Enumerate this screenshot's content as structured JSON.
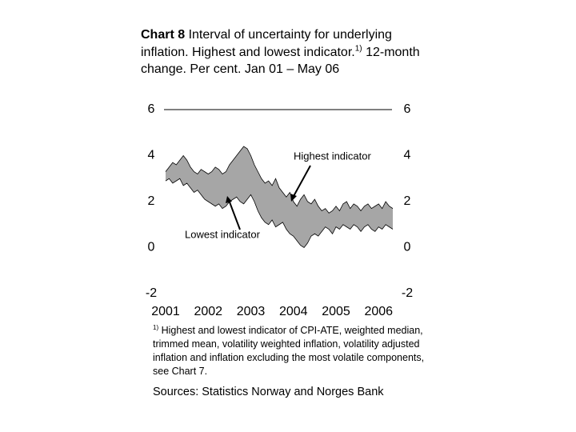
{
  "chart_data": {
    "type": "band",
    "title": {
      "number": "Chart 8",
      "text": "Interval of uncertainty for underlying inflation. Highest and lowest indicator.",
      "note_ref": "1)",
      "rest": "12-month change. Per cent. Jan 01 – May 06"
    },
    "footnote": {
      "ref": "1)",
      "text": "Highest and lowest indicator of CPI-ATE, weighted median, trimmed mean, volatility weighted inflation, volatility adjusted inflation and inflation excluding the most volatile components, see Chart 7."
    },
    "sources": "Sources: Statistics Norway and Norges Bank",
    "categories": [
      "2001",
      null,
      null,
      null,
      null,
      null,
      null,
      null,
      null,
      null,
      null,
      null,
      "2002",
      null,
      null,
      null,
      null,
      null,
      null,
      null,
      null,
      null,
      null,
      null,
      "2003",
      null,
      null,
      null,
      null,
      null,
      null,
      null,
      null,
      null,
      null,
      null,
      "2004",
      null,
      null,
      null,
      null,
      null,
      null,
      null,
      null,
      null,
      null,
      null,
      "2005",
      null,
      null,
      null,
      null,
      null,
      null,
      null,
      null,
      null,
      null,
      null,
      "2006",
      null,
      null,
      null,
      null
    ],
    "series": [
      {
        "name": "Highest indicator",
        "color": "#000000",
        "values": [
          3.3,
          3.5,
          3.7,
          3.6,
          3.8,
          4.0,
          3.8,
          3.5,
          3.3,
          3.2,
          3.4,
          3.3,
          3.2,
          3.3,
          3.5,
          3.4,
          3.2,
          3.3,
          3.6,
          3.8,
          4.0,
          4.2,
          4.4,
          4.3,
          4.0,
          3.6,
          3.3,
          3.0,
          2.8,
          2.9,
          2.7,
          3.0,
          2.6,
          2.4,
          2.2,
          2.4,
          2.0,
          1.8,
          2.1,
          2.3,
          2.0,
          1.9,
          2.1,
          1.8,
          1.6,
          1.7,
          1.5,
          1.6,
          1.8,
          1.6,
          1.9,
          2.0,
          1.7,
          1.9,
          1.8,
          1.6,
          1.8,
          1.9,
          1.7,
          1.8,
          1.9,
          1.7,
          2.0,
          1.8,
          1.7
        ]
      },
      {
        "name": "Lowest indicator",
        "color": "#000000",
        "values": [
          2.9,
          3.0,
          2.8,
          2.9,
          3.0,
          2.7,
          2.8,
          2.6,
          2.4,
          2.5,
          2.3,
          2.1,
          2.0,
          1.9,
          1.8,
          1.9,
          1.7,
          1.8,
          2.0,
          2.1,
          2.2,
          2.0,
          1.9,
          2.1,
          2.3,
          2.0,
          1.6,
          1.3,
          1.1,
          1.0,
          1.2,
          0.9,
          1.0,
          1.1,
          0.8,
          0.6,
          0.5,
          0.3,
          0.1,
          0.0,
          0.2,
          0.5,
          0.6,
          0.5,
          0.7,
          0.9,
          0.8,
          0.6,
          0.9,
          0.8,
          1.0,
          0.9,
          0.8,
          1.0,
          0.9,
          0.7,
          0.9,
          1.0,
          0.8,
          0.7,
          0.9,
          0.8,
          1.0,
          0.9,
          0.8
        ]
      }
    ],
    "band_color": "#a6a6a6",
    "ylim": [
      -2,
      6
    ],
    "yticks": [
      -2,
      0,
      2,
      4,
      6
    ],
    "y2lim": [
      -2,
      6
    ],
    "y2ticks": [
      -2,
      0,
      2,
      4,
      6
    ]
  }
}
